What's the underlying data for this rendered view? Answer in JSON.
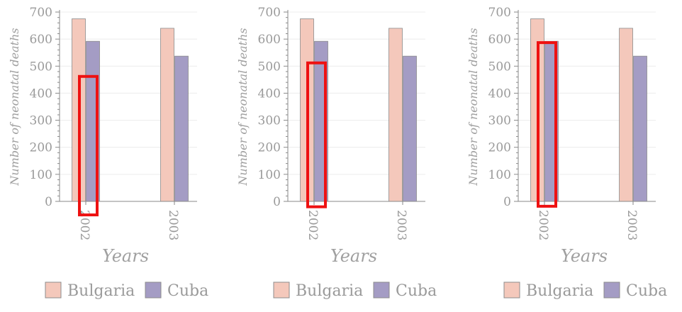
{
  "colors": {
    "bulgaria": "#f4c8bb",
    "cuba": "#a49cc4",
    "highlight": "#ee1111",
    "axis": "#8a8a8a",
    "grid": "#ececec",
    "text": "#9a9a9a"
  },
  "chart_data": [
    {
      "type": "bar",
      "categories": [
        "2002",
        "2003"
      ],
      "series": [
        {
          "name": "Bulgaria",
          "values": [
            675,
            640
          ]
        },
        {
          "name": "Cuba",
          "values": [
            592,
            537
          ]
        }
      ],
      "xlabel": "Years",
      "ylabel": "Number of neonatal deaths",
      "ylim": [
        0,
        700
      ],
      "yticks": [
        0,
        100,
        200,
        300,
        400,
        500,
        600,
        700
      ],
      "grid": true,
      "legend": "bottom",
      "highlight": {
        "category": "2002",
        "range": [
          -50,
          462
        ]
      }
    },
    {
      "type": "bar",
      "categories": [
        "2002",
        "2003"
      ],
      "series": [
        {
          "name": "Bulgaria",
          "values": [
            675,
            640
          ]
        },
        {
          "name": "Cuba",
          "values": [
            592,
            537
          ]
        }
      ],
      "xlabel": "Years",
      "ylabel": "Number of neonatal deaths",
      "ylim": [
        0,
        700
      ],
      "yticks": [
        0,
        100,
        200,
        300,
        400,
        500,
        600,
        700
      ],
      "grid": true,
      "legend": "bottom",
      "highlight": {
        "category": "2002",
        "range": [
          -20,
          512
        ]
      }
    },
    {
      "type": "bar",
      "categories": [
        "2002",
        "2003"
      ],
      "series": [
        {
          "name": "Bulgaria",
          "values": [
            675,
            640
          ]
        },
        {
          "name": "Cuba",
          "values": [
            592,
            537
          ]
        }
      ],
      "xlabel": "Years",
      "ylabel": "Number of neonatal deaths",
      "ylim": [
        0,
        700
      ],
      "yticks": [
        0,
        100,
        200,
        300,
        400,
        500,
        600,
        700
      ],
      "grid": true,
      "legend": "bottom",
      "highlight": {
        "category": "2002",
        "range": [
          -18,
          587
        ]
      }
    }
  ]
}
